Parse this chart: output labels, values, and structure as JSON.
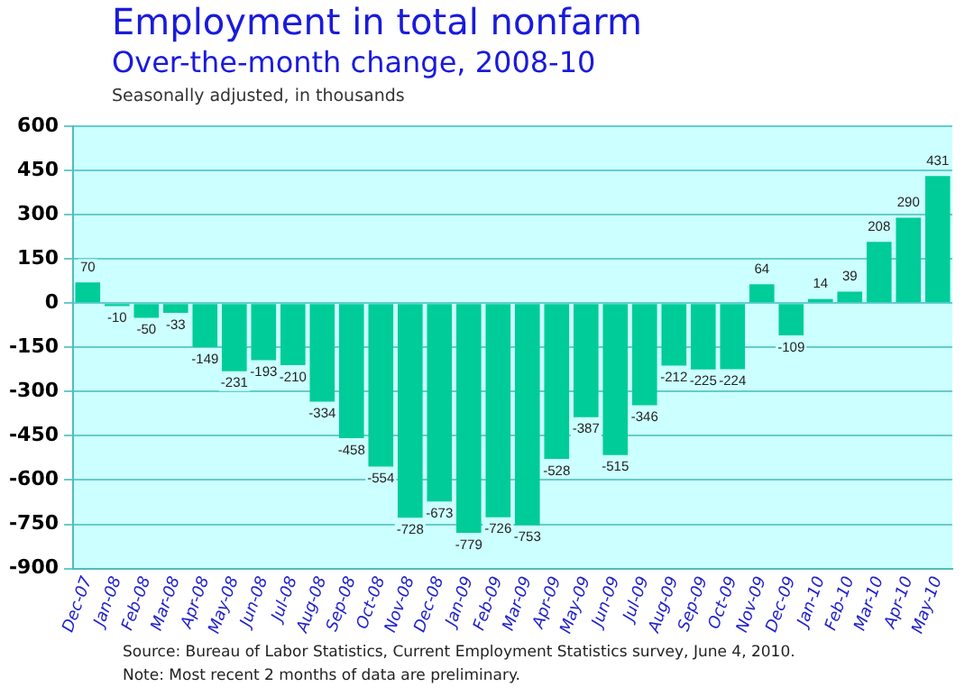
{
  "chart_data": {
    "type": "bar",
    "title": "Employment in total nonfarm",
    "subtitle": "Over-the-month change, 2008-10",
    "ylabel": "Seasonally adjusted, in thousands",
    "categories": [
      "Dec-07",
      "Jan-08",
      "Feb-08",
      "Mar-08",
      "Apr-08",
      "May-08",
      "Jun-08",
      "Jul-08",
      "Aug-08",
      "Sep-08",
      "Oct-08",
      "Nov-08",
      "Dec-08",
      "Jan-09",
      "Feb-09",
      "Mar-09",
      "Apr-09",
      "May-09",
      "Jun-09",
      "Jul-09",
      "Aug-09",
      "Sep-09",
      "Oct-09",
      "Nov-09",
      "Dec-09",
      "Jan-10",
      "Feb-10",
      "Mar-10",
      "Apr-10",
      "May-10"
    ],
    "values": [
      70,
      -10,
      -50,
      -33,
      -149,
      -231,
      -193,
      -210,
      -334,
      -458,
      -554,
      -728,
      -673,
      -779,
      -726,
      -753,
      -528,
      -387,
      -515,
      -346,
      -212,
      -225,
      -224,
      64,
      -109,
      14,
      39,
      208,
      290,
      431
    ],
    "color": "#00cc99",
    "ylim": [
      -900,
      600
    ],
    "yticks": [
      -900,
      -750,
      -600,
      -450,
      -300,
      -150,
      0,
      150,
      300,
      450,
      600
    ],
    "grid": "y",
    "data_labels": true,
    "annotations": [
      "Source:  Bureau of Labor Statistics, Current Employment Statistics survey, June 4, 2010.",
      "Note: Most recent 2 months of data are preliminary."
    ]
  }
}
